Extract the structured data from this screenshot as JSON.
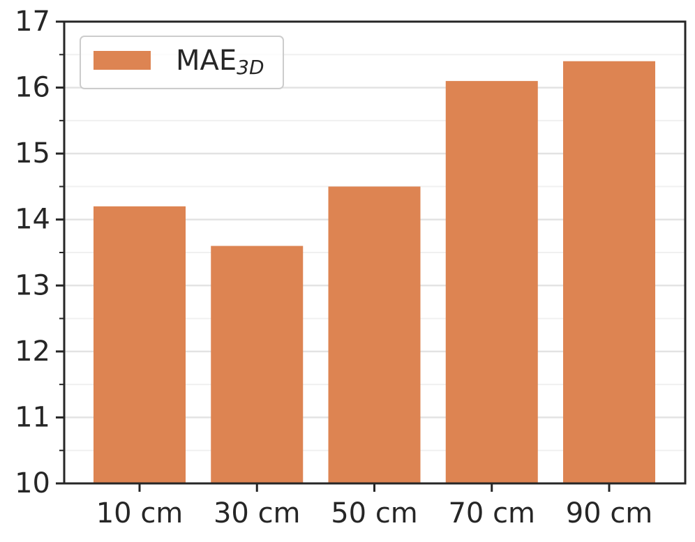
{
  "chart_data": {
    "type": "bar",
    "categories": [
      "10 cm",
      "30 cm",
      "50 cm",
      "70 cm",
      "90 cm"
    ],
    "series": [
      {
        "name": "MAE",
        "name_subscript": "3D",
        "color": "#dd8452",
        "values": [
          14.2,
          13.6,
          14.5,
          16.1,
          16.4
        ]
      }
    ],
    "ylim": [
      10,
      17
    ],
    "yticks": [
      10,
      11,
      12,
      13,
      14,
      15,
      16,
      17
    ],
    "yticks_minor": [
      10.5,
      11.5,
      12.5,
      13.5,
      14.5,
      15.5,
      16.5
    ],
    "grid": true,
    "legend_position": "upper left"
  }
}
